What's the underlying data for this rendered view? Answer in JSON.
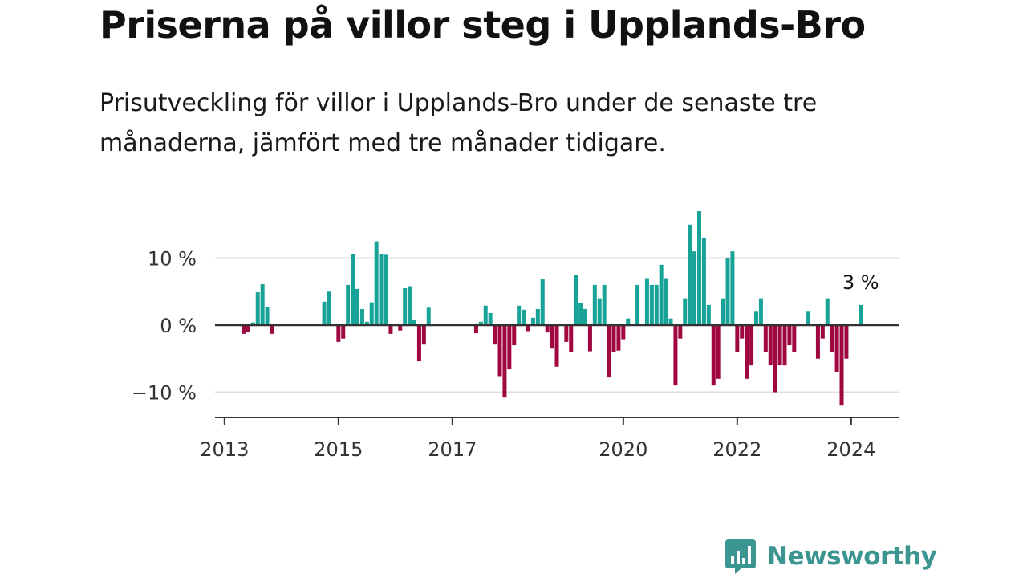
{
  "header": {
    "title": "Priserna på villor steg i Upplands-Bro",
    "subtitle": "Prisutveckling för villor i Upplands-Bro under de senaste tre månaderna, jämfört med tre månader tidigare."
  },
  "brand": {
    "name": "Newsworthy",
    "logo_icon": "bar-chart-speech-bubble-icon",
    "color": "#3b9591"
  },
  "colors": {
    "positive": "#17a398",
    "negative": "#a0063f",
    "zero_line": "#333333",
    "grid": "#dddddd"
  },
  "chart_data": {
    "type": "bar",
    "title": "Priserna på villor steg i Upplands-Bro",
    "subtitle": "Prisutveckling för villor i Upplands-Bro under de senaste tre månaderna, jämfört med tre månader tidigare.",
    "xlabel": "",
    "ylabel": "",
    "ylim": [
      -13,
      18
    ],
    "yticks": [
      {
        "value": 10,
        "label": "10 %"
      },
      {
        "value": 0,
        "label": "0 %"
      },
      {
        "value": -10,
        "label": "−10 %"
      }
    ],
    "xlim": [
      "2012-11",
      "2024-11"
    ],
    "xticks": [
      {
        "date": "2013-01",
        "label": "2013"
      },
      {
        "date": "2015-01",
        "label": "2015"
      },
      {
        "date": "2017-01",
        "label": "2017"
      },
      {
        "date": "2020-01",
        "label": "2020"
      },
      {
        "date": "2022-01",
        "label": "2022"
      },
      {
        "date": "2024-01",
        "label": "2024"
      }
    ],
    "grid": true,
    "annotation": {
      "label": "3 %",
      "date": "2024-03",
      "value": 3
    },
    "x": [
      "2013-05",
      "2013-06",
      "2013-07",
      "2013-08",
      "2013-09",
      "2013-10",
      "2013-11",
      "2014-10",
      "2014-11",
      "2015-01",
      "2015-02",
      "2015-03",
      "2015-04",
      "2015-05",
      "2015-06",
      "2015-07",
      "2015-08",
      "2015-09",
      "2015-10",
      "2015-11",
      "2015-12",
      "2016-02",
      "2016-03",
      "2016-04",
      "2016-05",
      "2016-06",
      "2016-07",
      "2016-08",
      "2016-09",
      "2017-06",
      "2017-07",
      "2017-08",
      "2017-09",
      "2017-10",
      "2017-11",
      "2017-12",
      "2018-01",
      "2018-02",
      "2018-03",
      "2018-04",
      "2018-05",
      "2018-06",
      "2018-07",
      "2018-08",
      "2018-09",
      "2018-10",
      "2018-11",
      "2018-12",
      "2019-01",
      "2019-02",
      "2019-03",
      "2019-04",
      "2019-05",
      "2019-06",
      "2019-07",
      "2019-08",
      "2019-09",
      "2019-10",
      "2019-11",
      "2019-12",
      "2020-01",
      "2020-02",
      "2020-03",
      "2020-04",
      "2020-05",
      "2020-06",
      "2020-07",
      "2020-08",
      "2020-09",
      "2020-10",
      "2020-11",
      "2020-12",
      "2021-01",
      "2021-02",
      "2021-03",
      "2021-04",
      "2021-05",
      "2021-06",
      "2021-07",
      "2021-08",
      "2021-09",
      "2021-10",
      "2021-11",
      "2021-12",
      "2022-01",
      "2022-02",
      "2022-03",
      "2022-04",
      "2022-05",
      "2022-06",
      "2022-07",
      "2022-08",
      "2022-09",
      "2022-10",
      "2022-11",
      "2022-12",
      "2023-01",
      "2023-02",
      "2023-03",
      "2023-04",
      "2023-05",
      "2023-06",
      "2023-07",
      "2023-08",
      "2023-09",
      "2023-10",
      "2023-11",
      "2023-12",
      "2024-01",
      "2024-02",
      "2024-03"
    ],
    "values": [
      -1.3,
      -1.0,
      0.4,
      4.9,
      6.1,
      2.7,
      -1.3,
      3.5,
      5.0,
      -2.5,
      -2.0,
      6.0,
      10.6,
      5.4,
      2.4,
      0.5,
      3.4,
      12.5,
      10.6,
      10.5,
      -1.3,
      -0.8,
      5.5,
      5.8,
      0.8,
      -5.4,
      -2.9,
      2.6,
      0,
      -1.2,
      0.5,
      2.9,
      1.8,
      -2.9,
      -7.6,
      -10.8,
      -6.6,
      -3.0,
      2.9,
      2.3,
      -0.9,
      1.1,
      2.4,
      6.9,
      -1.1,
      -3.5,
      -6.2,
      0,
      -2.5,
      -4.0,
      7.5,
      3.3,
      2.4,
      -3.9,
      6.0,
      4.0,
      6.0,
      -7.8,
      -4.0,
      -3.8,
      -2.1,
      1.0,
      0,
      6.0,
      0,
      7.0,
      6.0,
      6.0,
      9.0,
      7.0,
      1.0,
      -9.0,
      -2.0,
      4.0,
      15.0,
      11.0,
      17.0,
      13.0,
      3.0,
      -9.0,
      -8.0,
      4.0,
      10.0,
      11.0,
      -4.0,
      -2.0,
      -8.0,
      -6.0,
      2.0,
      4.0,
      -4.0,
      -6.0,
      -10.0,
      -6.0,
      -6.0,
      -3.0,
      -4.0,
      0,
      0,
      2.0,
      0,
      -5.0,
      -2.0,
      4.0,
      -4.0,
      -7.0,
      -12.0,
      -5.0,
      0,
      0,
      3.0
    ]
  }
}
